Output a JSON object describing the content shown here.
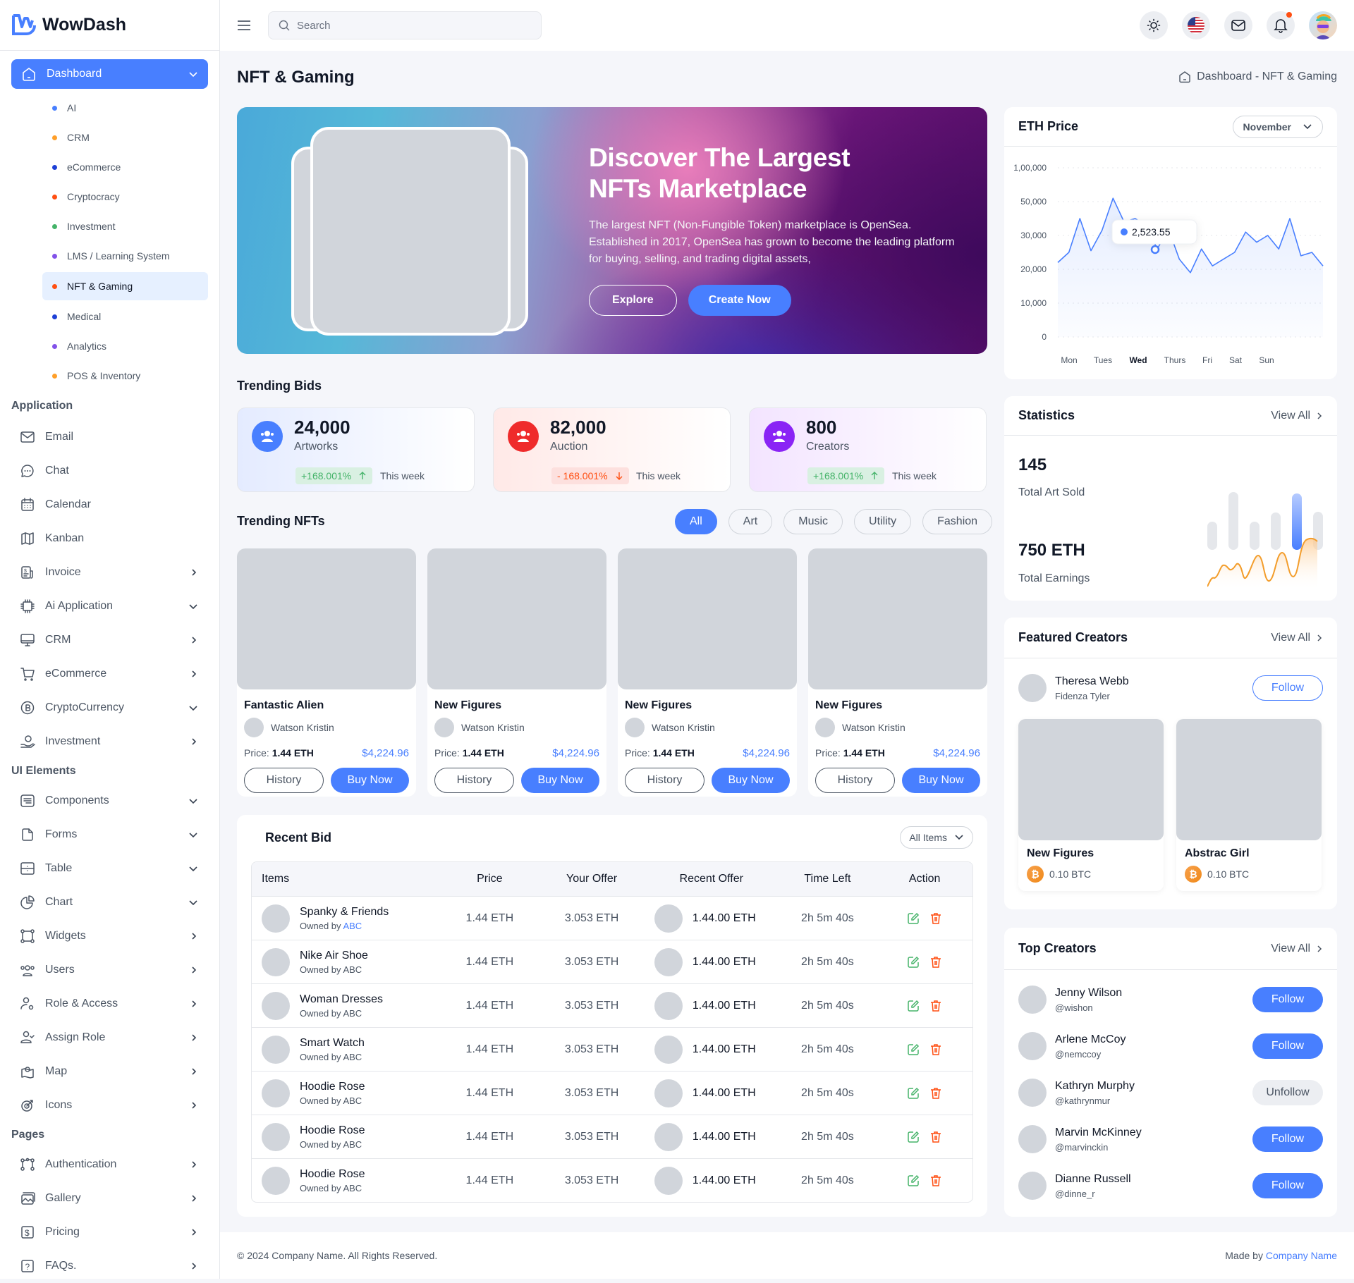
{
  "app": {
    "name": "WowDash"
  },
  "sidebar": {
    "dashboard": {
      "label": "Dashboard"
    },
    "dashboard_items": [
      {
        "label": "AI",
        "color": "#487fff"
      },
      {
        "label": "CRM",
        "color": "#ff9f29"
      },
      {
        "label": "eCommerce",
        "color": "#1e40d6"
      },
      {
        "label": "Cryptocracy",
        "color": "#ff4f12"
      },
      {
        "label": "Investment",
        "color": "#45b369"
      },
      {
        "label": "LMS / Learning System",
        "color": "#8252e9"
      },
      {
        "label": "NFT & Gaming",
        "color": "#ff4f12",
        "active": true
      },
      {
        "label": "Medical",
        "color": "#1e40d6"
      },
      {
        "label": "Analytics",
        "color": "#8252e9"
      },
      {
        "label": "POS & Inventory",
        "color": "#ff9f29"
      }
    ],
    "sections": {
      "application": "Application",
      "ui_elements": "UI Elements",
      "pages": "Pages"
    },
    "application_items": [
      {
        "label": "Email",
        "icon": "mail-icon",
        "chevron": ""
      },
      {
        "label": "Chat",
        "icon": "chat-icon",
        "chevron": ""
      },
      {
        "label": "Calendar",
        "icon": "calendar-icon",
        "chevron": ""
      },
      {
        "label": "Kanban",
        "icon": "map-fold-icon",
        "chevron": ""
      },
      {
        "label": "Invoice",
        "icon": "invoice-icon",
        "chevron": "right"
      },
      {
        "label": "Ai Application",
        "icon": "ai-chip-icon",
        "chevron": "down"
      },
      {
        "label": "CRM",
        "icon": "monitor-icon",
        "chevron": "right"
      },
      {
        "label": "eCommerce",
        "icon": "cart-icon",
        "chevron": "right"
      },
      {
        "label": "CryptoCurrency",
        "icon": "bitcoin-icon",
        "chevron": "down"
      },
      {
        "label": "Investment",
        "icon": "money-hand-icon",
        "chevron": "right"
      }
    ],
    "ui_items": [
      {
        "label": "Components",
        "icon": "components-icon",
        "chevron": "down"
      },
      {
        "label": "Forms",
        "icon": "file-icon",
        "chevron": "down"
      },
      {
        "label": "Table",
        "icon": "table-icon",
        "chevron": "down"
      },
      {
        "label": "Chart",
        "icon": "pie-chart-icon",
        "chevron": "down"
      },
      {
        "label": "Widgets",
        "icon": "widgets-icon",
        "chevron": "right"
      },
      {
        "label": "Users",
        "icon": "users-icon",
        "chevron": "right"
      },
      {
        "label": "Role & Access",
        "icon": "user-gear-icon",
        "chevron": "right"
      },
      {
        "label": "Assign Role",
        "icon": "user-check-icon",
        "chevron": "right"
      },
      {
        "label": "Map",
        "icon": "map-pin-icon",
        "chevron": "right"
      },
      {
        "label": "Icons",
        "icon": "target-icon",
        "chevron": "right"
      }
    ],
    "pages_items": [
      {
        "label": "Authentication",
        "icon": "nodes-icon",
        "chevron": "right"
      },
      {
        "label": "Gallery",
        "icon": "gallery-icon",
        "chevron": "right"
      },
      {
        "label": "Pricing",
        "icon": "dollar-icon",
        "chevron": "right"
      },
      {
        "label": "FAQs.",
        "icon": "question-icon",
        "chevron": "right"
      }
    ]
  },
  "header": {
    "search": {
      "placeholder": "Search",
      "value": ""
    }
  },
  "page": {
    "title": "NFT & Gaming",
    "breadcrumb": "Dashboard - NFT & Gaming"
  },
  "hero": {
    "title_line1": "Discover The Largest",
    "title_line2": "NFTs Marketplace",
    "description": "The largest NFT (Non-Fungible Token) marketplace is OpenSea. Established in 2017, OpenSea has grown to become the leading platform for buying, selling, and trading digital assets,",
    "explore_label": "Explore",
    "create_label": "Create Now"
  },
  "trending_bids": {
    "title": "Trending Bids",
    "cards": [
      {
        "value": "24,000",
        "label": "Artworks",
        "change": "+168.001%",
        "direction": "up",
        "period": "This week",
        "icon_color": "#487fff",
        "bg": "linear-gradient(90deg,#e4ebff,#ffffff)"
      },
      {
        "value": "82,000",
        "label": "Auction",
        "change": "- 168.001%",
        "direction": "down",
        "period": "This week",
        "icon_color": "#ef2b2b",
        "bg": "linear-gradient(90deg,#ffe9e7,#ffffff)"
      },
      {
        "value": "800",
        "label": "Creators",
        "change": "+168.001%",
        "direction": "up",
        "period": "This week",
        "icon_color": "#8a24f5",
        "bg": "linear-gradient(90deg,#f3e4ff,#ffffff)"
      }
    ]
  },
  "trending_nfts": {
    "title": "Trending NFTs",
    "filters": [
      {
        "label": "All",
        "active": true
      },
      {
        "label": "Art"
      },
      {
        "label": "Music"
      },
      {
        "label": "Utility"
      },
      {
        "label": "Fashion"
      }
    ],
    "price_label": "Price:",
    "history_label": "History",
    "buy_label": "Buy Now",
    "cards": [
      {
        "name": "Fantastic Alien",
        "owner": "Watson Kristin",
        "price": "1.44 ETH",
        "usd": "$4,224.96"
      },
      {
        "name": "New Figures",
        "owner": "Watson Kristin",
        "price": "1.44 ETH",
        "usd": "$4,224.96"
      },
      {
        "name": "New Figures",
        "owner": "Watson Kristin",
        "price": "1.44 ETH",
        "usd": "$4,224.96"
      },
      {
        "name": "New Figures",
        "owner": "Watson Kristin",
        "price": "1.44 ETH",
        "usd": "$4,224.96"
      }
    ]
  },
  "recent_bid": {
    "title": "Recent Bid",
    "filter": "All Items",
    "columns": [
      "Items",
      "Price",
      "Your Offer",
      "Recent Offer",
      "Time Left",
      "Action"
    ],
    "owned_prefix": "Owned by",
    "rows": [
      {
        "item": "Spanky & Friends",
        "owner": "ABC",
        "owner_link": true,
        "price": "1.44 ETH",
        "your_offer": "3.053 ETH",
        "recent_offer": "1.44.00 ETH",
        "time_left": "2h 5m 40s"
      },
      {
        "item": "Nike Air Shoe",
        "owner": "ABC",
        "price": "1.44 ETH",
        "your_offer": "3.053 ETH",
        "recent_offer": "1.44.00 ETH",
        "time_left": "2h 5m 40s"
      },
      {
        "item": "Woman Dresses",
        "owner": "ABC",
        "price": "1.44 ETH",
        "your_offer": "3.053 ETH",
        "recent_offer": "1.44.00 ETH",
        "time_left": "2h 5m 40s"
      },
      {
        "item": "Smart Watch",
        "owner": "ABC",
        "price": "1.44 ETH",
        "your_offer": "3.053 ETH",
        "recent_offer": "1.44.00 ETH",
        "time_left": "2h 5m 40s"
      },
      {
        "item": "Hoodie Rose",
        "owner": "ABC",
        "price": "1.44 ETH",
        "your_offer": "3.053 ETH",
        "recent_offer": "1.44.00 ETH",
        "time_left": "2h 5m 40s"
      },
      {
        "item": "Hoodie Rose",
        "owner": "ABC",
        "price": "1.44 ETH",
        "your_offer": "3.053 ETH",
        "recent_offer": "1.44.00 ETH",
        "time_left": "2h 5m 40s"
      },
      {
        "item": "Hoodie Rose",
        "owner": "ABC",
        "price": "1.44 ETH",
        "your_offer": "3.053 ETH",
        "recent_offer": "1.44.00 ETH",
        "time_left": "2h 5m 40s"
      }
    ]
  },
  "eth_price": {
    "title": "ETH Price",
    "month": "November",
    "tooltip": "2,523.55",
    "y_ticks": [
      "1,00,000",
      "50,000",
      "30,000",
      "20,000",
      "10,000",
      "0"
    ],
    "x_ticks": [
      "Mon",
      "Tues",
      "Wed",
      "Thurs",
      "Fri",
      "Sat",
      "Sun"
    ],
    "active_x": "Wed"
  },
  "chart_data": {
    "type": "area",
    "title": "ETH Price",
    "xlabel": "",
    "ylabel": "",
    "categories": [
      "Mon",
      "Tues",
      "Wed",
      "Thurs",
      "Fri",
      "Sat",
      "Sun"
    ],
    "y_ticks": [
      0,
      10000,
      20000,
      30000,
      50000,
      100000
    ],
    "series": [
      {
        "name": "ETH Price",
        "color": "#487fff",
        "values": [
          22000,
          25000,
          40000,
          25500,
          33000,
          55000,
          38000,
          40000,
          36000,
          26000,
          34000,
          23000,
          19000,
          26000,
          21000,
          23000,
          25000,
          32000,
          28000,
          30000,
          26000,
          40000,
          24000,
          25000,
          21000
        ]
      }
    ],
    "tooltip": {
      "x": "Wed",
      "value": "2,523.55"
    },
    "grid": true
  },
  "statistics": {
    "title": "Statistics",
    "view_all": "View All",
    "art_sold_value": "145",
    "art_sold_label": "Total Art Sold",
    "earnings_value": "750 ETH",
    "earnings_label": "Total Earnings"
  },
  "featured_creators": {
    "title": "Featured Creators",
    "view_all": "View All",
    "creator_name": "Theresa Webb",
    "creator_sub": "Fidenza Tyler",
    "follow_label": "Follow",
    "items": [
      {
        "name": "New Figures",
        "price": "0.10 BTC"
      },
      {
        "name": "Abstrac Girl",
        "price": "0.10 BTC"
      }
    ]
  },
  "top_creators": {
    "title": "Top Creators",
    "view_all": "View All",
    "creators": [
      {
        "name": "Jenny Wilson",
        "handle": "@wishon",
        "action": "Follow"
      },
      {
        "name": "Arlene McCoy",
        "handle": "@nemccoy",
        "action": "Follow"
      },
      {
        "name": "Kathryn Murphy",
        "handle": "@kathrynmur",
        "action": "Unfollow"
      },
      {
        "name": "Marvin McKinney",
        "handle": "@marvinckin",
        "action": "Follow"
      },
      {
        "name": "Dianne Russell",
        "handle": "@dinne_r",
        "action": "Follow"
      }
    ]
  },
  "footer": {
    "copyright": "© 2024 Company Name. All Rights Reserved.",
    "made_by": "Made by",
    "company": "Company Name"
  }
}
